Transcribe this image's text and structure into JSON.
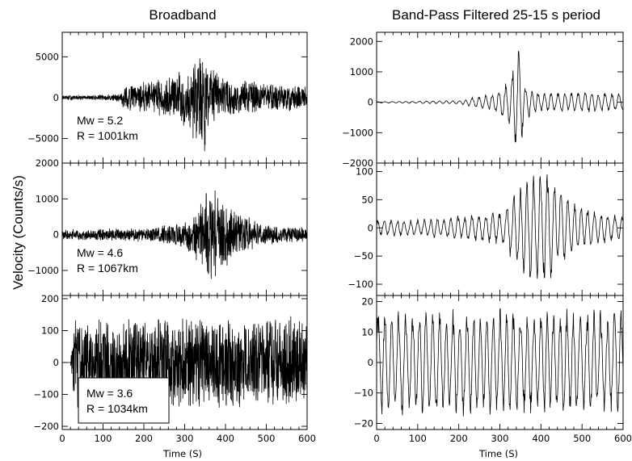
{
  "figure": {
    "ylabel": "Velocity (Counts/s)"
  },
  "chart_data": [
    {
      "type": "line",
      "column": "left",
      "row": 0,
      "title": "Broadband",
      "xlim": [
        0,
        600
      ],
      "ylim": [
        -8000,
        8000
      ],
      "yticks": [
        -5000,
        0,
        5000
      ],
      "ytick_labels": [
        "−5000",
        "0",
        "5000"
      ],
      "annotation": [
        "Mw = 5.2",
        "R = 1001km"
      ],
      "boxed": false,
      "envelope": {
        "t": [
          0,
          60,
          140,
          150,
          250,
          300,
          330,
          345,
          350,
          360,
          400,
          500,
          600
        ],
        "amp": [
          300,
          300,
          500,
          1500,
          2500,
          4000,
          6000,
          7000,
          7000,
          4000,
          2500,
          2000,
          1500
        ]
      }
    },
    {
      "type": "line",
      "column": "left",
      "row": 1,
      "title": "",
      "xlim": [
        0,
        600
      ],
      "ylim": [
        -1700,
        2000
      ],
      "yticks": [
        -1000,
        0,
        1000,
        2000
      ],
      "ytick_labels": [
        "−1000",
        "0",
        "1000",
        "2000"
      ],
      "annotation": [
        "Mw = 4.6",
        "R = 1067km"
      ],
      "boxed": false,
      "envelope": {
        "t": [
          0,
          200,
          300,
          350,
          360,
          380,
          420,
          500,
          600
        ],
        "amp": [
          150,
          200,
          400,
          1200,
          1900,
          1200,
          700,
          300,
          200
        ]
      }
    },
    {
      "type": "line",
      "column": "left",
      "row": 2,
      "title": "",
      "xlim": [
        0,
        600
      ],
      "ylim": [
        -210,
        210
      ],
      "yticks": [
        -200,
        -100,
        0,
        100,
        200
      ],
      "ytick_labels": [
        "−200",
        "−100",
        "0",
        "100",
        "200"
      ],
      "xticks": [
        0,
        100,
        200,
        300,
        400,
        500,
        600
      ],
      "xtick_labels": [
        "0",
        "100",
        "200",
        "300",
        "400",
        "500",
        "600"
      ],
      "xlabel": "Time (S)",
      "annotation": [
        "Mw = 3.6",
        "R = 1034km"
      ],
      "boxed": true,
      "envelope": {
        "t": [
          0,
          20,
          30,
          580,
          600
        ],
        "amp": [
          0,
          0,
          150,
          150,
          150
        ]
      }
    },
    {
      "type": "line",
      "column": "right",
      "row": 0,
      "title": "Band-Pass Filtered 25-15 s period",
      "xlim": [
        0,
        600
      ],
      "ylim": [
        -2000,
        2300
      ],
      "yticks": [
        -2000,
        -1000,
        0,
        1000,
        2000
      ],
      "ytick_labels": [
        "−2000",
        "−1000",
        "0",
        "1000",
        "2000"
      ],
      "envelope": {
        "t": [
          0,
          200,
          280,
          320,
          345,
          360,
          400,
          500,
          600
        ],
        "amp": [
          20,
          60,
          300,
          700,
          2100,
          600,
          300,
          350,
          300
        ]
      }
    },
    {
      "type": "line",
      "column": "right",
      "row": 1,
      "title": "",
      "xlim": [
        0,
        600
      ],
      "ylim": [
        -120,
        115
      ],
      "yticks": [
        -100,
        -50,
        0,
        50,
        100
      ],
      "ytick_labels": [
        "−100",
        "−50",
        "0",
        "50",
        "100"
      ],
      "envelope": {
        "t": [
          0,
          100,
          300,
          350,
          400,
          450,
          500,
          600
        ],
        "amp": [
          15,
          15,
          30,
          80,
          115,
          70,
          40,
          20
        ]
      }
    },
    {
      "type": "line",
      "column": "right",
      "row": 2,
      "title": "",
      "xlim": [
        0,
        600
      ],
      "ylim": [
        -22,
        22
      ],
      "yticks": [
        -20,
        -10,
        0,
        10,
        20
      ],
      "ytick_labels": [
        "−20",
        "−10",
        "0",
        "10",
        "20"
      ],
      "xticks": [
        0,
        100,
        200,
        300,
        400,
        500,
        600
      ],
      "xtick_labels": [
        "0",
        "100",
        "200",
        "300",
        "400",
        "500",
        "600"
      ],
      "xlabel": "Time (S)",
      "envelope": {
        "t": [
          0,
          600
        ],
        "amp": [
          18,
          18
        ]
      }
    }
  ]
}
